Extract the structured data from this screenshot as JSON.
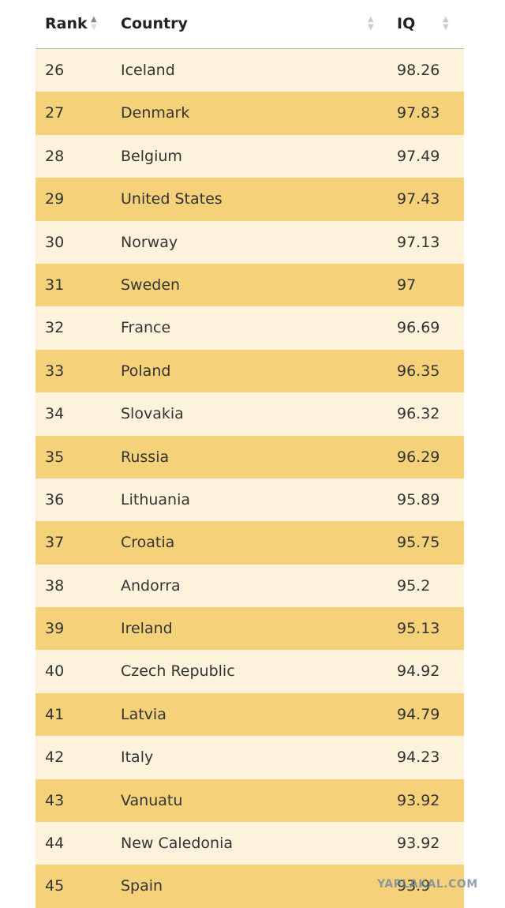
{
  "table": {
    "columns": [
      "Rank",
      "Country",
      "IQ"
    ],
    "rows": [
      [
        26,
        "Iceland",
        98.26
      ],
      [
        27,
        "Denmark",
        97.83
      ],
      [
        28,
        "Belgium",
        97.49
      ],
      [
        29,
        "United States",
        97.43
      ],
      [
        30,
        "Norway",
        97.13
      ],
      [
        31,
        "Sweden",
        97
      ],
      [
        32,
        "France",
        96.69
      ],
      [
        33,
        "Poland",
        96.35
      ],
      [
        34,
        "Slovakia",
        96.32
      ],
      [
        35,
        "Russia",
        96.29
      ],
      [
        36,
        "Lithuania",
        95.89
      ],
      [
        37,
        "Croatia",
        95.75
      ],
      [
        38,
        "Andorra",
        95.2
      ],
      [
        39,
        "Ireland",
        95.13
      ],
      [
        40,
        "Czech Republic",
        94.92
      ],
      [
        41,
        "Latvia",
        94.79
      ],
      [
        42,
        "Italy",
        94.23
      ],
      [
        43,
        "Vanuatu",
        93.92
      ],
      [
        44,
        "New Caledonia",
        93.92
      ],
      [
        45,
        "Spain",
        93.9
      ]
    ]
  },
  "watermark": "YAPLAKAL.COM"
}
